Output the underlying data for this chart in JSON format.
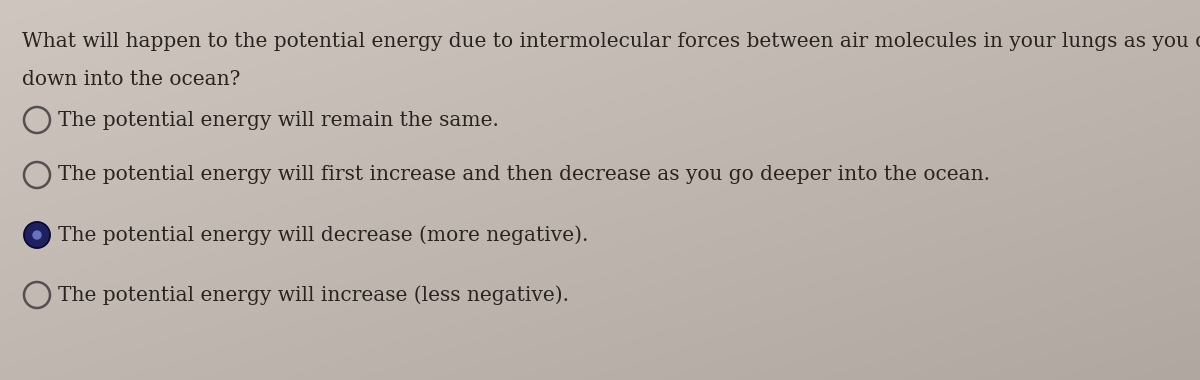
{
  "background_color_tl": "#cec6bf",
  "background_color_br": "#b8afa8",
  "question_line1": "What will happen to the potential energy due to intermolecular forces between air molecules in your lungs as you dive",
  "question_line2": "down into the ocean?",
  "options": [
    {
      "text": "The potential energy will remain the same.",
      "selected": false
    },
    {
      "text": "The potential energy will first increase and then decrease as you go deeper into the ocean.",
      "selected": false
    },
    {
      "text": "The potential energy will decrease (more negative).",
      "selected": true
    },
    {
      "text": "The potential energy will increase (less negative).",
      "selected": false
    }
  ],
  "text_color": "#2a2420",
  "font_size_question": 14.5,
  "font_size_options": 14.5,
  "circle_edge_color": "#555050",
  "circle_filled_color": "#1e2060",
  "circle_center_color": "#6870c0",
  "fig_width": 12.0,
  "fig_height": 3.8,
  "dpi": 100
}
